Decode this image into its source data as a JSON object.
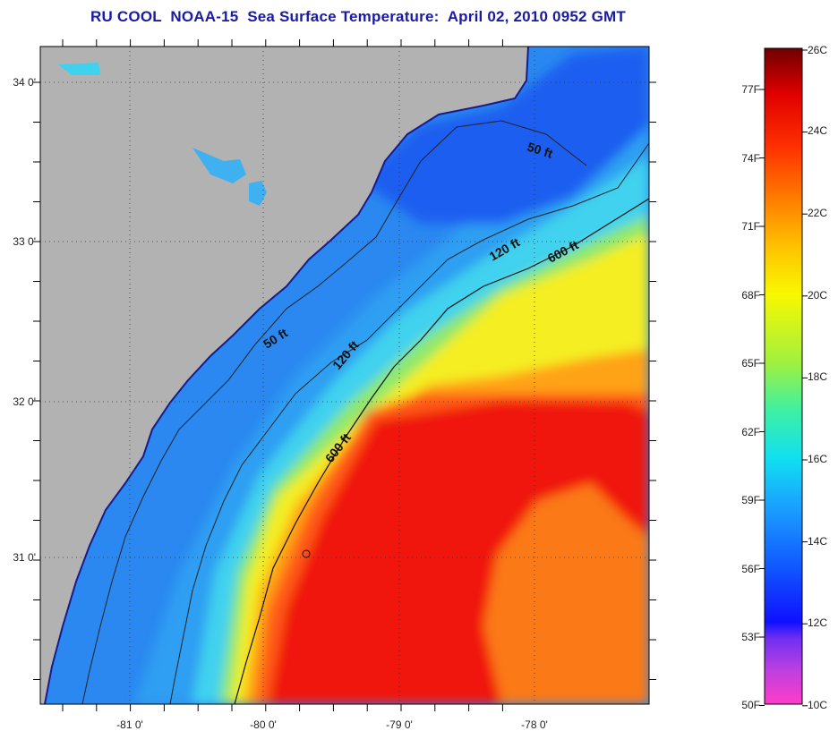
{
  "title": "RU COOL  NOAA-15  Sea Surface Temperature:  April 02, 2010 0952 GMT",
  "map": {
    "x_tick_labels": [
      "-81 0'",
      "-80 0'",
      "-79 0'",
      "-78 0'"
    ],
    "y_tick_labels": [
      "34 0'",
      "33 0'",
      "32 0'",
      "31 0'"
    ],
    "contour_labels": [
      "50 ft",
      "50 ft",
      "120 ft",
      "120 ft",
      "600 ft",
      "600 ft"
    ],
    "colors": {
      "land": "#b2b2b2",
      "cold": "#1a5ff0",
      "cool": "#2e9ff2",
      "cyan": "#3fd2ee",
      "green": "#8fe86a",
      "yellow": "#f4ee20",
      "orange": "#ffa316",
      "warm": "#ff5a12",
      "hot": "#f01810"
    }
  },
  "colorbar": {
    "celsius_labels": [
      "26C",
      "24C",
      "22C",
      "20C",
      "18C",
      "16C",
      "14C",
      "12C",
      "10C"
    ],
    "fahrenheit_labels": [
      "77F",
      "74F",
      "71F",
      "68F",
      "65F",
      "62F",
      "59F",
      "56F",
      "53F",
      "50F"
    ]
  }
}
